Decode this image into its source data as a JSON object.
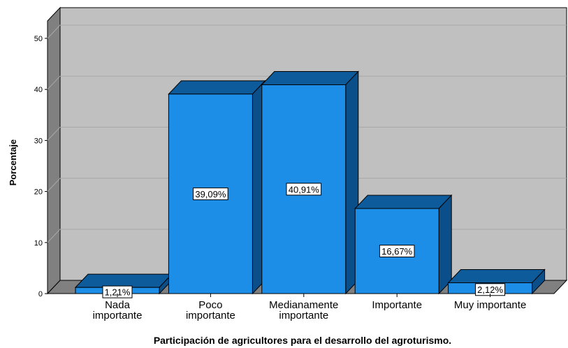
{
  "chart_data": {
    "type": "bar",
    "title": "",
    "xlabel": "Participación de agricultores para el desarrollo del agroturismo.",
    "ylabel": "Porcentaje",
    "categories": [
      [
        "Nada",
        "importante"
      ],
      [
        "Poco",
        "importante"
      ],
      [
        "Medianamente",
        "importante"
      ],
      [
        "Importante"
      ],
      [
        "Muy importante"
      ]
    ],
    "values": [
      1.21,
      39.09,
      40.91,
      16.67,
      2.12
    ],
    "data_labels": [
      "1,21%",
      "39,09%",
      "40,91%",
      "16,67%",
      "2,12%"
    ],
    "yticks": [
      0,
      10,
      20,
      30,
      40,
      50
    ],
    "ylim": [
      0,
      53
    ],
    "grid": true,
    "style": "3d",
    "colors": {
      "bar_front": "#1d8ee8",
      "bar_top": "#0e5b9c",
      "bar_side": "#0b4f8a",
      "wall": "#c0c0c0",
      "floor": "#808080",
      "side_wall": "#808080",
      "grid": "#a8a8a8"
    }
  }
}
